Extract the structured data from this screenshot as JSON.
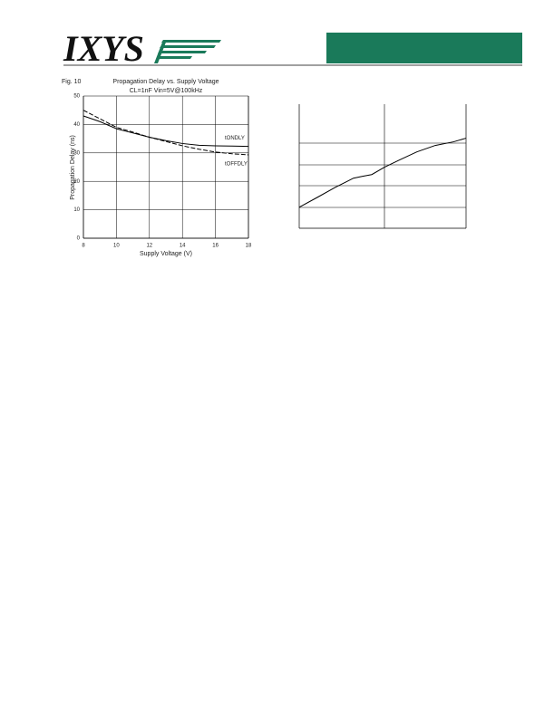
{
  "header": {
    "logo": "IXYS"
  },
  "chart_data": [
    {
      "type": "line",
      "figure": "Fig. 10",
      "title": "Propagation Delay vs. Supply Voltage",
      "subtitle": "CL=1nF Vin=5V@100kHz",
      "xlabel": "Supply Voltage (V)",
      "ylabel": "Propagation Delay (ns)",
      "x": [
        8,
        9,
        10,
        11,
        12,
        13,
        14,
        15,
        16,
        17,
        18
      ],
      "xlim": [
        8,
        18
      ],
      "xticks": [
        8,
        10,
        12,
        14,
        16,
        18
      ],
      "ylim": [
        0,
        50
      ],
      "yticks": [
        0,
        10,
        20,
        30,
        40,
        50
      ],
      "grid": true,
      "series": [
        {
          "name": "tONDLY",
          "color": "#000000",
          "values": [
            43,
            41,
            38.5,
            37,
            35.5,
            34.3,
            33.3,
            32.7,
            32.5,
            32.4,
            32.3
          ]
        },
        {
          "name": "tOFFDLY",
          "color": "#000000",
          "values": [
            45,
            42,
            39,
            37.3,
            35.5,
            34,
            32.5,
            31.3,
            30.3,
            29.7,
            29.3
          ]
        }
      ]
    },
    {
      "type": "line",
      "x": [
        0,
        0.22,
        0.43,
        0.65,
        0.76,
        0.87,
        1.02,
        1.2,
        1.41,
        1.63,
        1.85,
        2
      ],
      "xlim": [
        0,
        2
      ],
      "ylim": [
        0,
        5.8
      ],
      "series": [
        {
          "color": "#000000",
          "values": [
            0.98,
            1.45,
            1.91,
            2.34,
            2.43,
            2.51,
            2.85,
            3.19,
            3.57,
            3.87,
            4.04,
            4.21
          ]
        }
      ]
    }
  ]
}
